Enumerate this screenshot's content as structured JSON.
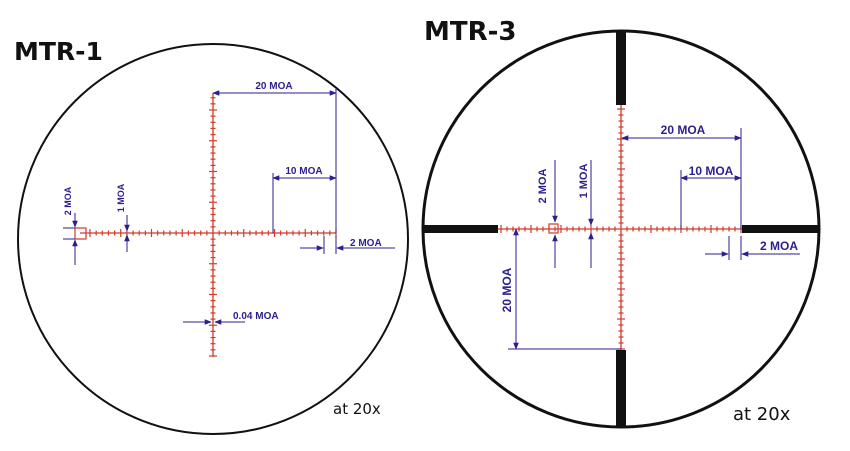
{
  "colors": {
    "reticle": "#d23a2a",
    "dimension": "#2b1f8f",
    "outline": "#111111",
    "post": "#111111",
    "background": "#ffffff"
  },
  "reticles": [
    {
      "title": "MTR-1",
      "magnification": "at 20x",
      "labels": {
        "twenty_moa": "20 MOA",
        "ten_moa": "10 MOA",
        "two_moa_left": "2 MOA",
        "one_moa": "1 MOA",
        "two_moa_right": "2 MOA",
        "line_width": "0.04 MOA"
      }
    },
    {
      "title": "MTR-3",
      "magnification": "at 20x",
      "labels": {
        "twenty_moa": "20 MOA",
        "ten_moa": "10 MOA",
        "two_moa_left": "2 MOA",
        "one_moa": "1 MOA",
        "two_moa_right": "2 MOA",
        "twenty_moa_vertical": "20 MOA"
      }
    }
  ]
}
